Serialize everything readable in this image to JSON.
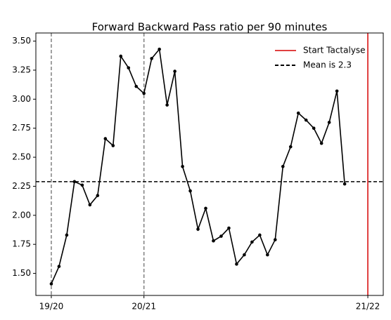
{
  "chart_data": {
    "type": "line",
    "title": "Forward Backward Pass ratio per 90 minutes",
    "x": [
      0,
      1,
      2,
      3,
      4,
      5,
      6,
      7,
      8,
      9,
      10,
      11,
      12,
      13,
      14,
      15,
      16,
      17,
      18,
      19,
      20,
      21,
      22,
      23,
      24,
      25,
      26,
      27,
      28,
      29,
      30,
      31,
      32,
      33,
      34,
      35,
      36,
      37,
      38
    ],
    "values": [
      1.41,
      1.56,
      1.83,
      2.29,
      2.26,
      2.09,
      2.17,
      2.66,
      2.6,
      3.37,
      3.27,
      3.11,
      3.05,
      3.35,
      3.43,
      2.95,
      3.24,
      2.42,
      2.21,
      1.88,
      2.06,
      1.78,
      1.82,
      1.89,
      1.58,
      1.66,
      1.77,
      1.83,
      1.66,
      1.79,
      2.42,
      2.59,
      2.88,
      2.82,
      2.75,
      2.62,
      2.8,
      3.07,
      2.27
    ],
    "color": "#000000",
    "xlim": [
      -2,
      43
    ],
    "ylim": [
      1.31,
      3.57
    ],
    "xticks": [
      {
        "value": 0,
        "label": "19/20"
      },
      {
        "value": 12,
        "label": "20/21"
      },
      {
        "value": 41,
        "label": "21/22"
      }
    ],
    "yticks": [
      {
        "value": 1.5,
        "label": "1.50"
      },
      {
        "value": 1.75,
        "label": "1.75"
      },
      {
        "value": 2.0,
        "label": "2.00"
      },
      {
        "value": 2.25,
        "label": "2.25"
      },
      {
        "value": 2.5,
        "label": "2.50"
      },
      {
        "value": 2.75,
        "label": "2.75"
      },
      {
        "value": 3.0,
        "label": "3.00"
      },
      {
        "value": 3.25,
        "label": "3.25"
      },
      {
        "value": 3.5,
        "label": "3.50"
      }
    ],
    "season_lines": {
      "x": [
        0,
        12
      ],
      "color": "#808080"
    },
    "vlines": [
      {
        "name": "Start Tactalyse",
        "x": 41,
        "color": "#e04040"
      }
    ],
    "hlines": [
      {
        "name": "Mean is 2.3",
        "y": 2.29,
        "color": "#000000"
      }
    ],
    "legend": "upper right"
  }
}
